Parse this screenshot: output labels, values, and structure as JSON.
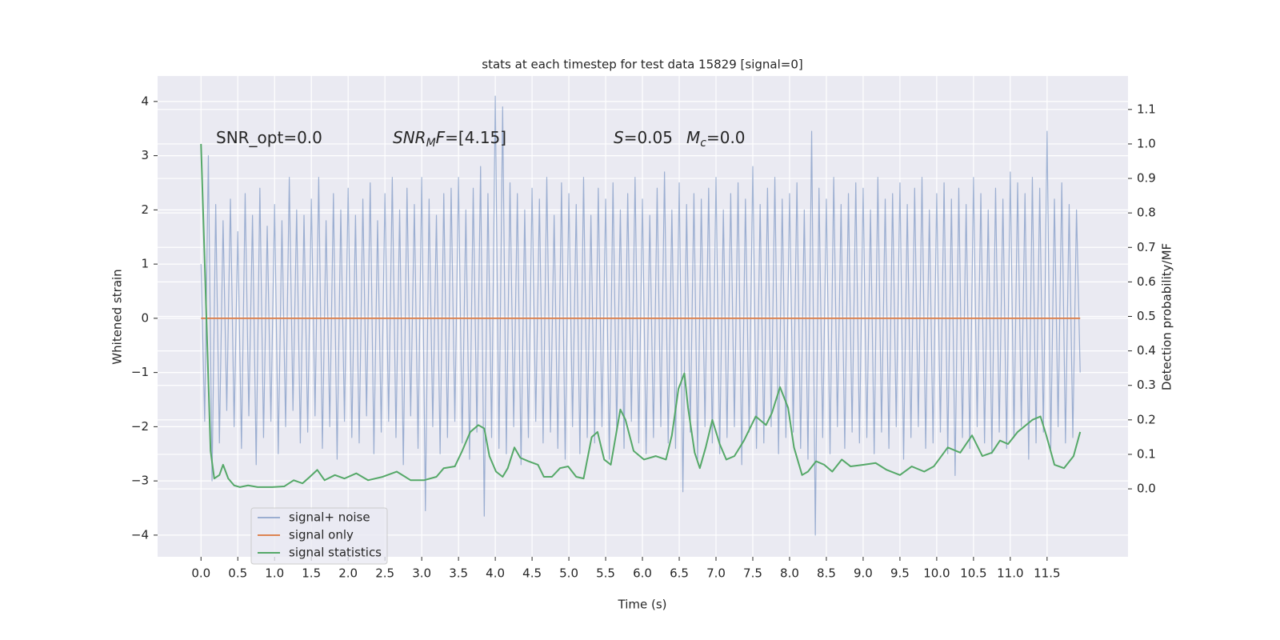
{
  "chart_data": {
    "type": "line",
    "title": "stats at each timestep for test data 15829 [signal=0]",
    "xlabel": "Time (s)",
    "ylabel": "Whitened strain",
    "y2label": "Detection probability/MF",
    "annotations": [
      [
        {
          "text": "SNR_opt=0.0"
        }
      ],
      [
        {
          "text": "SNR",
          "italic": true
        },
        {
          "text": "M",
          "italic": true,
          "sub": true
        },
        {
          "text": "F",
          "italic": true
        },
        {
          "text": "=[4.15]"
        }
      ],
      [
        {
          "text": "S",
          "italic": true
        },
        {
          "text": "=0.05"
        }
      ],
      [
        {
          "text": "M",
          "italic": true
        },
        {
          "text": "c",
          "italic": true,
          "sub": true
        },
        {
          "text": "=0.0"
        }
      ]
    ],
    "xlim": [
      -0.59,
      12.6
    ],
    "ylim": [
      -4.4,
      4.47
    ],
    "y2lim": [
      -0.197,
      1.197
    ],
    "xticks": [
      {
        "value": 0,
        "label": "0.0"
      },
      0.5,
      {
        "value": 1,
        "label": "1.0"
      },
      1.5,
      {
        "value": 2,
        "label": "2.0"
      },
      2.5,
      {
        "value": 3,
        "label": "3.0"
      },
      3.5,
      {
        "value": 4,
        "label": "4.0"
      },
      4.5,
      {
        "value": 5,
        "label": "5.0"
      },
      5.5,
      {
        "value": 6,
        "label": "6.0"
      },
      6.5,
      {
        "value": 7,
        "label": "7.0"
      },
      7.5,
      {
        "value": 8,
        "label": "8.0"
      },
      8.5,
      {
        "value": 9,
        "label": "9.0"
      },
      9.5,
      {
        "value": 10,
        "label": "10.0"
      },
      10.5,
      {
        "value": 11,
        "label": "11.0"
      },
      11.5
    ],
    "yticks": [
      {
        "value": -4,
        "label": "−4"
      },
      {
        "value": -3,
        "label": "−3"
      },
      {
        "value": -2,
        "label": "−2"
      },
      {
        "value": -1,
        "label": "−1"
      },
      0,
      1,
      2,
      3,
      4
    ],
    "y2ticks": [
      {
        "value": 0,
        "label": "0.0"
      },
      0.1,
      0.2,
      0.3,
      0.4,
      0.5,
      0.6,
      0.7,
      0.8,
      0.9,
      {
        "value": 1,
        "label": "1.0"
      },
      1.1
    ],
    "grid": true,
    "legend": "lower left",
    "series": [
      {
        "name": "signal+ noise",
        "color": "#4c72b0",
        "opacity": 0.5,
        "x": [
          0,
          0.05,
          0.1,
          0.15,
          0.2,
          0.25,
          0.3,
          0.35,
          0.4,
          0.45,
          0.5,
          0.55,
          0.6,
          0.65,
          0.7,
          0.75,
          0.8,
          0.85,
          0.9,
          0.95,
          1,
          1.05,
          1.1,
          1.15,
          1.2,
          1.25,
          1.3,
          1.35,
          1.4,
          1.45,
          1.5,
          1.55,
          1.6,
          1.65,
          1.7,
          1.75,
          1.8,
          1.85,
          1.9,
          1.95,
          2,
          2.05,
          2.1,
          2.15,
          2.2,
          2.25,
          2.3,
          2.35,
          2.4,
          2.45,
          2.5,
          2.55,
          2.6,
          2.65,
          2.7,
          2.75,
          2.8,
          2.85,
          2.9,
          2.95,
          3,
          3.05,
          3.1,
          3.15,
          3.2,
          3.25,
          3.3,
          3.35,
          3.4,
          3.45,
          3.5,
          3.55,
          3.6,
          3.65,
          3.7,
          3.75,
          3.8,
          3.85,
          3.9,
          3.95,
          4,
          4.05,
          4.1,
          4.15,
          4.2,
          4.25,
          4.3,
          4.35,
          4.4,
          4.45,
          4.5,
          4.55,
          4.6,
          4.65,
          4.7,
          4.75,
          4.8,
          4.85,
          4.9,
          4.95,
          5,
          5.05,
          5.1,
          5.15,
          5.2,
          5.25,
          5.3,
          5.35,
          5.4,
          5.45,
          5.5,
          5.55,
          5.6,
          5.65,
          5.7,
          5.75,
          5.8,
          5.85,
          5.9,
          5.95,
          6,
          6.05,
          6.1,
          6.15,
          6.2,
          6.25,
          6.3,
          6.35,
          6.4,
          6.45,
          6.5,
          6.55,
          6.6,
          6.65,
          6.7,
          6.75,
          6.8,
          6.85,
          6.9,
          6.95,
          7,
          7.05,
          7.1,
          7.15,
          7.2,
          7.25,
          7.3,
          7.35,
          7.4,
          7.45,
          7.5,
          7.55,
          7.6,
          7.65,
          7.7,
          7.75,
          7.8,
          7.85,
          7.9,
          7.95,
          8,
          8.05,
          8.1,
          8.15,
          8.2,
          8.25,
          8.3,
          8.35,
          8.4,
          8.45,
          8.5,
          8.55,
          8.6,
          8.65,
          8.7,
          8.75,
          8.8,
          8.85,
          8.9,
          8.95,
          9,
          9.05,
          9.1,
          9.15,
          9.2,
          9.25,
          9.3,
          9.35,
          9.4,
          9.45,
          9.5,
          9.55,
          9.6,
          9.65,
          9.7,
          9.75,
          9.8,
          9.85,
          9.9,
          9.95,
          10,
          10.05,
          10.1,
          10.15,
          10.2,
          10.25,
          10.3,
          10.35,
          10.4,
          10.45,
          10.5,
          10.55,
          10.6,
          10.65,
          10.7,
          10.75,
          10.8,
          10.85,
          10.9,
          10.95,
          11,
          11.05,
          11.1,
          11.15,
          11.2,
          11.25,
          11.3,
          11.35,
          11.4,
          11.45,
          11.5,
          11.55,
          11.6,
          11.65,
          11.7,
          11.75,
          11.8,
          11.85,
          11.9,
          11.95
        ],
        "values": [
          1.0,
          -1.9,
          3.0,
          -3.0,
          2.1,
          -2.3,
          1.8,
          -1.7,
          2.2,
          -2.0,
          1.6,
          -2.4,
          2.3,
          -1.8,
          1.9,
          -2.7,
          2.4,
          -2.2,
          1.7,
          -1.9,
          2.1,
          -2.5,
          1.8,
          -2.0,
          2.6,
          -1.7,
          2.0,
          -2.3,
          1.9,
          -2.1,
          2.2,
          -1.8,
          2.6,
          -2.4,
          1.8,
          -2.0,
          2.3,
          -2.6,
          2.0,
          -1.9,
          2.4,
          -2.2,
          1.9,
          -2.3,
          2.2,
          -1.8,
          2.5,
          -2.5,
          1.8,
          -2.1,
          2.3,
          -1.9,
          2.6,
          -2.2,
          2.0,
          -2.7,
          2.4,
          -1.8,
          2.1,
          -2.4,
          2.6,
          -3.55,
          2.2,
          -2.0,
          1.9,
          -2.5,
          2.3,
          -2.2,
          2.4,
          -1.9,
          2.6,
          -2.3,
          2.0,
          -2.6,
          2.4,
          -2.1,
          2.8,
          -3.65,
          2.3,
          -2.2,
          4.1,
          -2.4,
          3.9,
          -2.5,
          2.5,
          -2.0,
          2.3,
          -2.7,
          2.0,
          -2.2,
          2.4,
          -1.9,
          2.2,
          -2.3,
          2.6,
          -2.1,
          1.9,
          -2.4,
          2.5,
          -2.6,
          2.3,
          -2.0,
          2.1,
          -2.5,
          2.6,
          -2.2,
          1.9,
          -2.3,
          2.4,
          -2.0,
          2.2,
          -2.6,
          2.5,
          -2.1,
          2.0,
          -2.4,
          2.3,
          -1.9,
          2.6,
          -2.3,
          2.2,
          -2.5,
          1.9,
          -2.2,
          2.4,
          -2.0,
          2.7,
          -2.3,
          2.0,
          -2.4,
          2.5,
          -3.2,
          2.1,
          -2.1,
          2.3,
          -2.6,
          2.2,
          -2.0,
          2.4,
          -2.3,
          2.6,
          -2.5,
          2.0,
          -2.2,
          2.3,
          -2.0,
          2.5,
          -2.7,
          2.2,
          -2.1,
          2.8,
          -2.4,
          2.1,
          -2.3,
          2.4,
          -2.0,
          2.6,
          -2.5,
          2.2,
          -2.2,
          2.3,
          -2.1,
          2.5,
          -2.4,
          2.0,
          -2.6,
          3.45,
          -4.0,
          2.4,
          -2.2,
          2.2,
          -2.5,
          2.6,
          -2.0,
          2.1,
          -2.4,
          2.3,
          -2.1,
          2.5,
          -2.3,
          2.4,
          -2.2,
          2.0,
          -2.5,
          2.6,
          -2.1,
          2.2,
          -2.4,
          2.3,
          -2.0,
          2.5,
          -2.6,
          2.1,
          -2.2,
          2.4,
          -2.0,
          2.6,
          -2.4,
          2.0,
          -2.3,
          2.3,
          -2.1,
          2.5,
          -2.5,
          2.2,
          -2.9,
          2.4,
          -2.2,
          2.1,
          -2.4,
          2.6,
          -2.0,
          2.3,
          -2.3,
          2.0,
          -2.5,
          2.4,
          -2.1,
          2.2,
          -2.4,
          2.7,
          -2.2,
          2.5,
          -2.0,
          2.3,
          -2.6,
          2.6,
          -2.3,
          2.4,
          -2.1,
          3.45,
          -2.4,
          2.2,
          -2.0,
          2.5,
          -2.3,
          2.1,
          -2.2,
          2.0,
          -1.0
        ]
      },
      {
        "name": "signal only",
        "color": "#dd8452",
        "x": [
          0,
          11.95
        ],
        "values": [
          0,
          0
        ]
      },
      {
        "name": "signal statistics",
        "color": "#55a868",
        "axis": "y2",
        "x": [
          0,
          0.13,
          0.18,
          0.25,
          0.3,
          0.37,
          0.45,
          0.53,
          0.64,
          0.77,
          0.97,
          1.13,
          1.26,
          1.38,
          1.48,
          1.58,
          1.68,
          1.82,
          1.95,
          2.11,
          2.27,
          2.47,
          2.66,
          2.85,
          3.03,
          3.2,
          3.3,
          3.45,
          3.55,
          3.66,
          3.77,
          3.85,
          3.92,
          4.01,
          4.1,
          4.17,
          4.26,
          4.34,
          4.45,
          4.58,
          4.66,
          4.77,
          4.88,
          4.99,
          5.1,
          5.2,
          5.31,
          5.39,
          5.48,
          5.57,
          5.7,
          5.77,
          5.88,
          6.02,
          6.18,
          6.32,
          6.4,
          6.49,
          6.57,
          6.62,
          6.71,
          6.78,
          6.86,
          6.95,
          7.05,
          7.14,
          7.25,
          7.38,
          7.54,
          7.68,
          7.76,
          7.87,
          7.98,
          8.06,
          8.17,
          8.25,
          8.36,
          8.47,
          8.58,
          8.71,
          8.83,
          9.01,
          9.17,
          9.32,
          9.5,
          9.66,
          9.83,
          9.96,
          10.15,
          10.32,
          10.48,
          10.62,
          10.75,
          10.86,
          10.97,
          11.1,
          11.3,
          11.41,
          11.49,
          11.6,
          11.73,
          11.86,
          11.95
        ],
        "values": [
          1.0,
          0.11,
          0.03,
          0.04,
          0.07,
          0.03,
          0.01,
          0.005,
          0.01,
          0.005,
          0.005,
          0.007,
          0.025,
          0.016,
          0.035,
          0.055,
          0.025,
          0.04,
          0.03,
          0.045,
          0.025,
          0.035,
          0.05,
          0.025,
          0.025,
          0.035,
          0.06,
          0.065,
          0.11,
          0.165,
          0.185,
          0.175,
          0.095,
          0.05,
          0.035,
          0.06,
          0.12,
          0.09,
          0.08,
          0.07,
          0.035,
          0.035,
          0.06,
          0.065,
          0.035,
          0.03,
          0.15,
          0.165,
          0.085,
          0.07,
          0.23,
          0.2,
          0.11,
          0.085,
          0.095,
          0.085,
          0.155,
          0.29,
          0.335,
          0.235,
          0.105,
          0.06,
          0.12,
          0.2,
          0.13,
          0.085,
          0.095,
          0.14,
          0.21,
          0.185,
          0.22,
          0.295,
          0.235,
          0.12,
          0.04,
          0.05,
          0.08,
          0.07,
          0.05,
          0.085,
          0.065,
          0.07,
          0.075,
          0.055,
          0.04,
          0.065,
          0.05,
          0.065,
          0.12,
          0.105,
          0.155,
          0.095,
          0.105,
          0.14,
          0.13,
          0.165,
          0.2,
          0.21,
          0.155,
          0.07,
          0.06,
          0.095,
          0.165
        ]
      }
    ]
  }
}
